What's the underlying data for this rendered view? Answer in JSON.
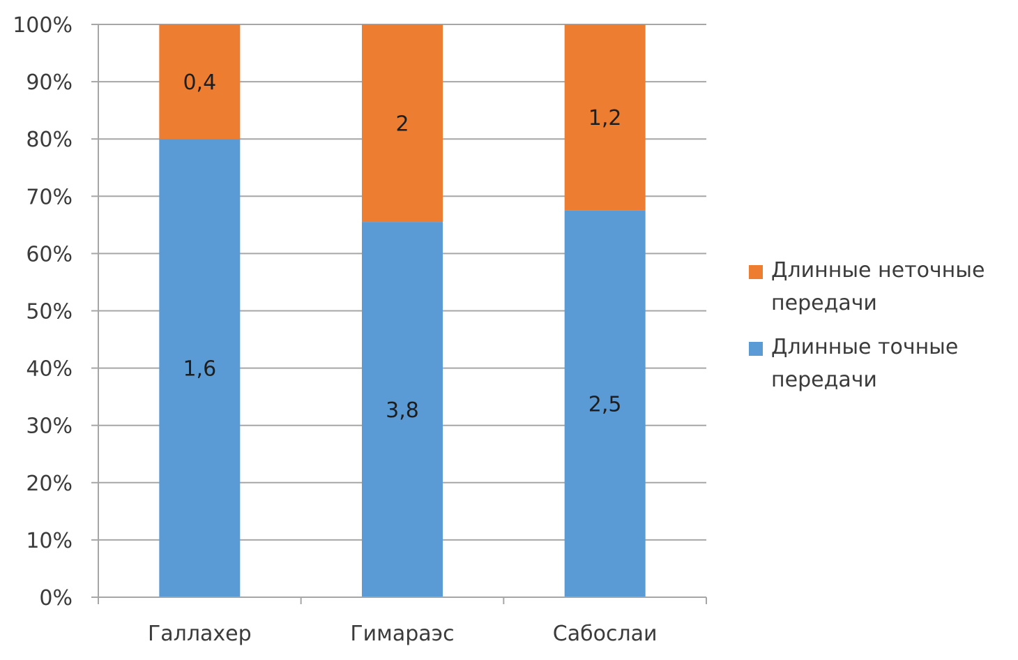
{
  "chart_data": {
    "type": "bar",
    "stacked": "percent",
    "categories": [
      "Галлахер",
      "Гимараэс",
      "Сабослаи"
    ],
    "series": [
      {
        "name": "Длинные точные передачи",
        "values": [
          1.6,
          3.8,
          2.5
        ],
        "labels": [
          "1,6",
          "3,8",
          "2,5"
        ],
        "color": "#5b9bd5"
      },
      {
        "name": "Длинные неточные передачи",
        "values": [
          0.4,
          2,
          1.2
        ],
        "labels": [
          "0,4",
          "2",
          "1,2"
        ],
        "color": "#ed7d31"
      }
    ],
    "y_ticks": [
      "0%",
      "10%",
      "20%",
      "30%",
      "40%",
      "50%",
      "60%",
      "70%",
      "80%",
      "90%",
      "100%"
    ],
    "ylim": [
      0,
      100
    ],
    "grid": true,
    "legend_position": "right",
    "legend": [
      {
        "label": "Длинные неточные передачи",
        "color": "#ed7d31"
      },
      {
        "label": "Длинные точные передачи",
        "color": "#5b9bd5"
      }
    ]
  }
}
